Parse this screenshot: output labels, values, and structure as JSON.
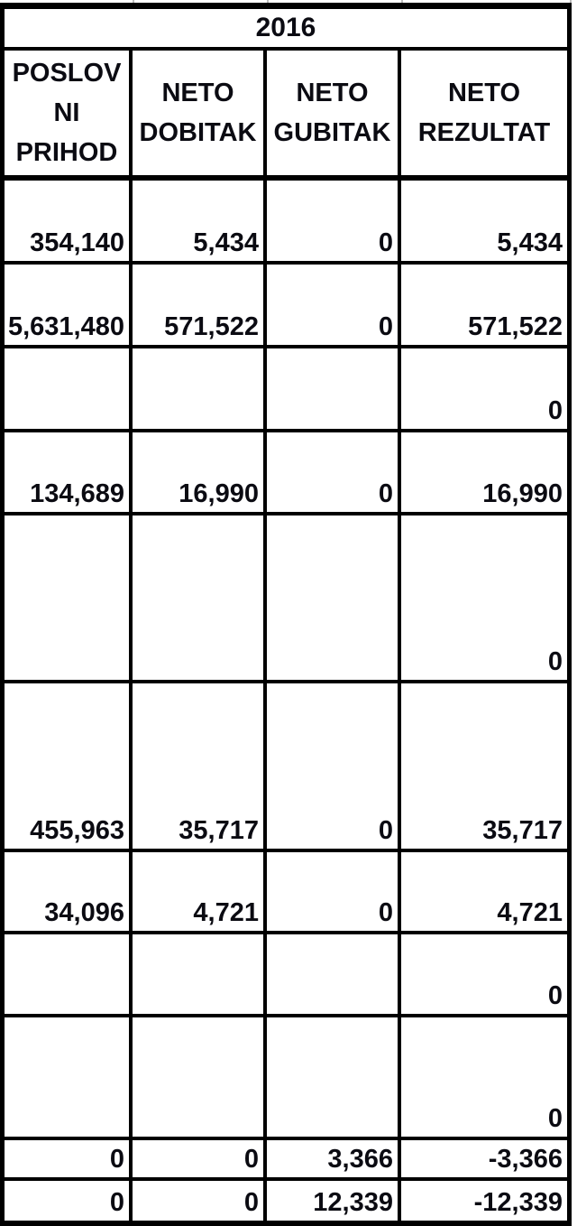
{
  "sheet": {
    "year_header": "2016",
    "columns": [
      "POSLOV\nNI\nPRIHOD",
      "NETO\nDOBITAK",
      "NETO\nGUBITAK",
      "NETO\nREZULTAT"
    ],
    "rows": [
      [
        "354,140",
        "5,434",
        "0",
        "5,434"
      ],
      [
        "5,631,480",
        "571,522",
        "0",
        "571,522"
      ],
      [
        "",
        "",
        "",
        "0"
      ],
      [
        "134,689",
        "16,990",
        "0",
        "16,990"
      ],
      [
        "",
        "",
        "",
        "0"
      ],
      [
        "455,963",
        "35,717",
        "0",
        "35,717"
      ],
      [
        "34,096",
        "4,721",
        "0",
        "4,721"
      ],
      [
        "",
        "",
        "",
        "0"
      ],
      [
        "",
        "",
        "",
        "0"
      ],
      [
        "0",
        "0",
        "3,366",
        "-3,366"
      ],
      [
        "0",
        "0",
        "12,339",
        "-12,339"
      ]
    ]
  },
  "colors": {
    "border": "#000000",
    "text": "#0b0b12",
    "gridline": "#bbbbbb",
    "background": "#ffffff"
  }
}
